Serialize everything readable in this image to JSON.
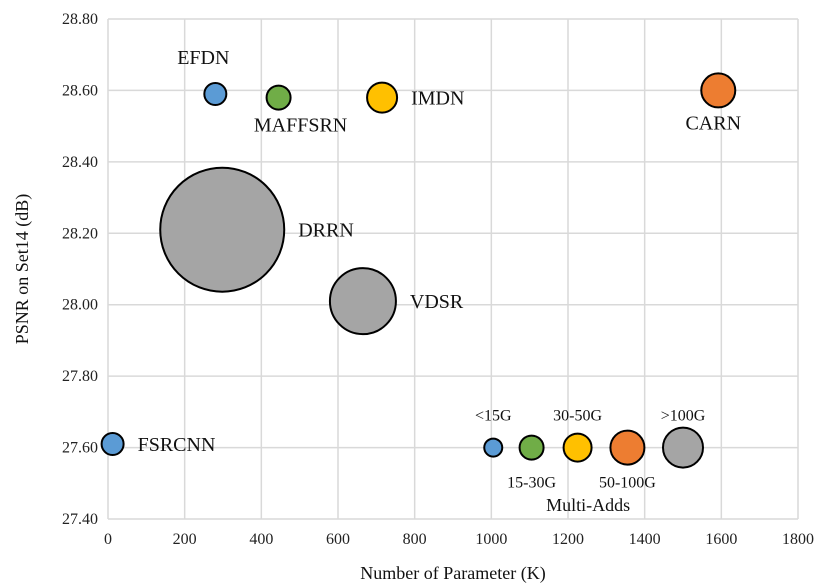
{
  "chart_data": {
    "type": "scatter",
    "xlabel": "Number of Parameter (K)",
    "ylabel": "PSNR on Set14 (dB)",
    "xlim": [
      0,
      1800
    ],
    "ylim": [
      27.4,
      28.8
    ],
    "x_ticks": [
      "0",
      "200",
      "400",
      "600",
      "800",
      "1000",
      "1200",
      "1400",
      "1600",
      "1800"
    ],
    "y_ticks": [
      "27.40",
      "27.60",
      "27.80",
      "28.00",
      "28.20",
      "28.40",
      "28.60",
      "28.80"
    ],
    "grid": true,
    "colors": {
      "blue": "#5b9bd5",
      "green": "#70ad47",
      "yellow": "#ffc000",
      "orange": "#ed7d31",
      "gray": "#a5a5a5",
      "highlight": "#e8000b"
    },
    "points": [
      {
        "label": "EFDN",
        "x": 280,
        "y": 28.59,
        "size": "<15G",
        "color": "#5b9bd5",
        "label_color": "#e8000b",
        "label_pos": "top"
      },
      {
        "label": "MAFFSRN",
        "x": 445,
        "y": 28.58,
        "size": "15-30G",
        "color": "#70ad47",
        "label_pos": "bottom"
      },
      {
        "label": "IMDN",
        "x": 715,
        "y": 28.58,
        "size": "30-50G",
        "color": "#ffc000",
        "label_pos": "right"
      },
      {
        "label": "CARN",
        "x": 1592,
        "y": 28.6,
        "size": "50-100G",
        "color": "#ed7d31",
        "label_pos": "bottom"
      },
      {
        "label": "DRRN",
        "x": 298,
        "y": 28.21,
        "size": "very large",
        "color": "#a5a5a5",
        "label_pos": "right"
      },
      {
        "label": "VDSR",
        "x": 665,
        "y": 28.01,
        "size": "large",
        "color": "#a5a5a5",
        "label_pos": "right"
      },
      {
        "label": "FSRCNN",
        "x": 12,
        "y": 27.61,
        "size": "<15G",
        "color": "#5b9bd5",
        "label_pos": "right"
      }
    ],
    "size_legend": {
      "title": "Multi-Adds",
      "y": 27.6,
      "items": [
        {
          "label": "<15G",
          "x": 1005,
          "color": "#5b9bd5",
          "label_pos": "top"
        },
        {
          "label": "15-30G",
          "x": 1105,
          "color": "#70ad47",
          "label_pos": "bottom"
        },
        {
          "label": "30-50G",
          "x": 1225,
          "color": "#ffc000",
          "label_pos": "top"
        },
        {
          "label": "50-100G",
          "x": 1355,
          "color": "#ed7d31",
          "label_pos": "bottom"
        },
        {
          "label": ">100G",
          "x": 1500,
          "color": "#a5a5a5",
          "label_pos": "top"
        }
      ]
    }
  }
}
